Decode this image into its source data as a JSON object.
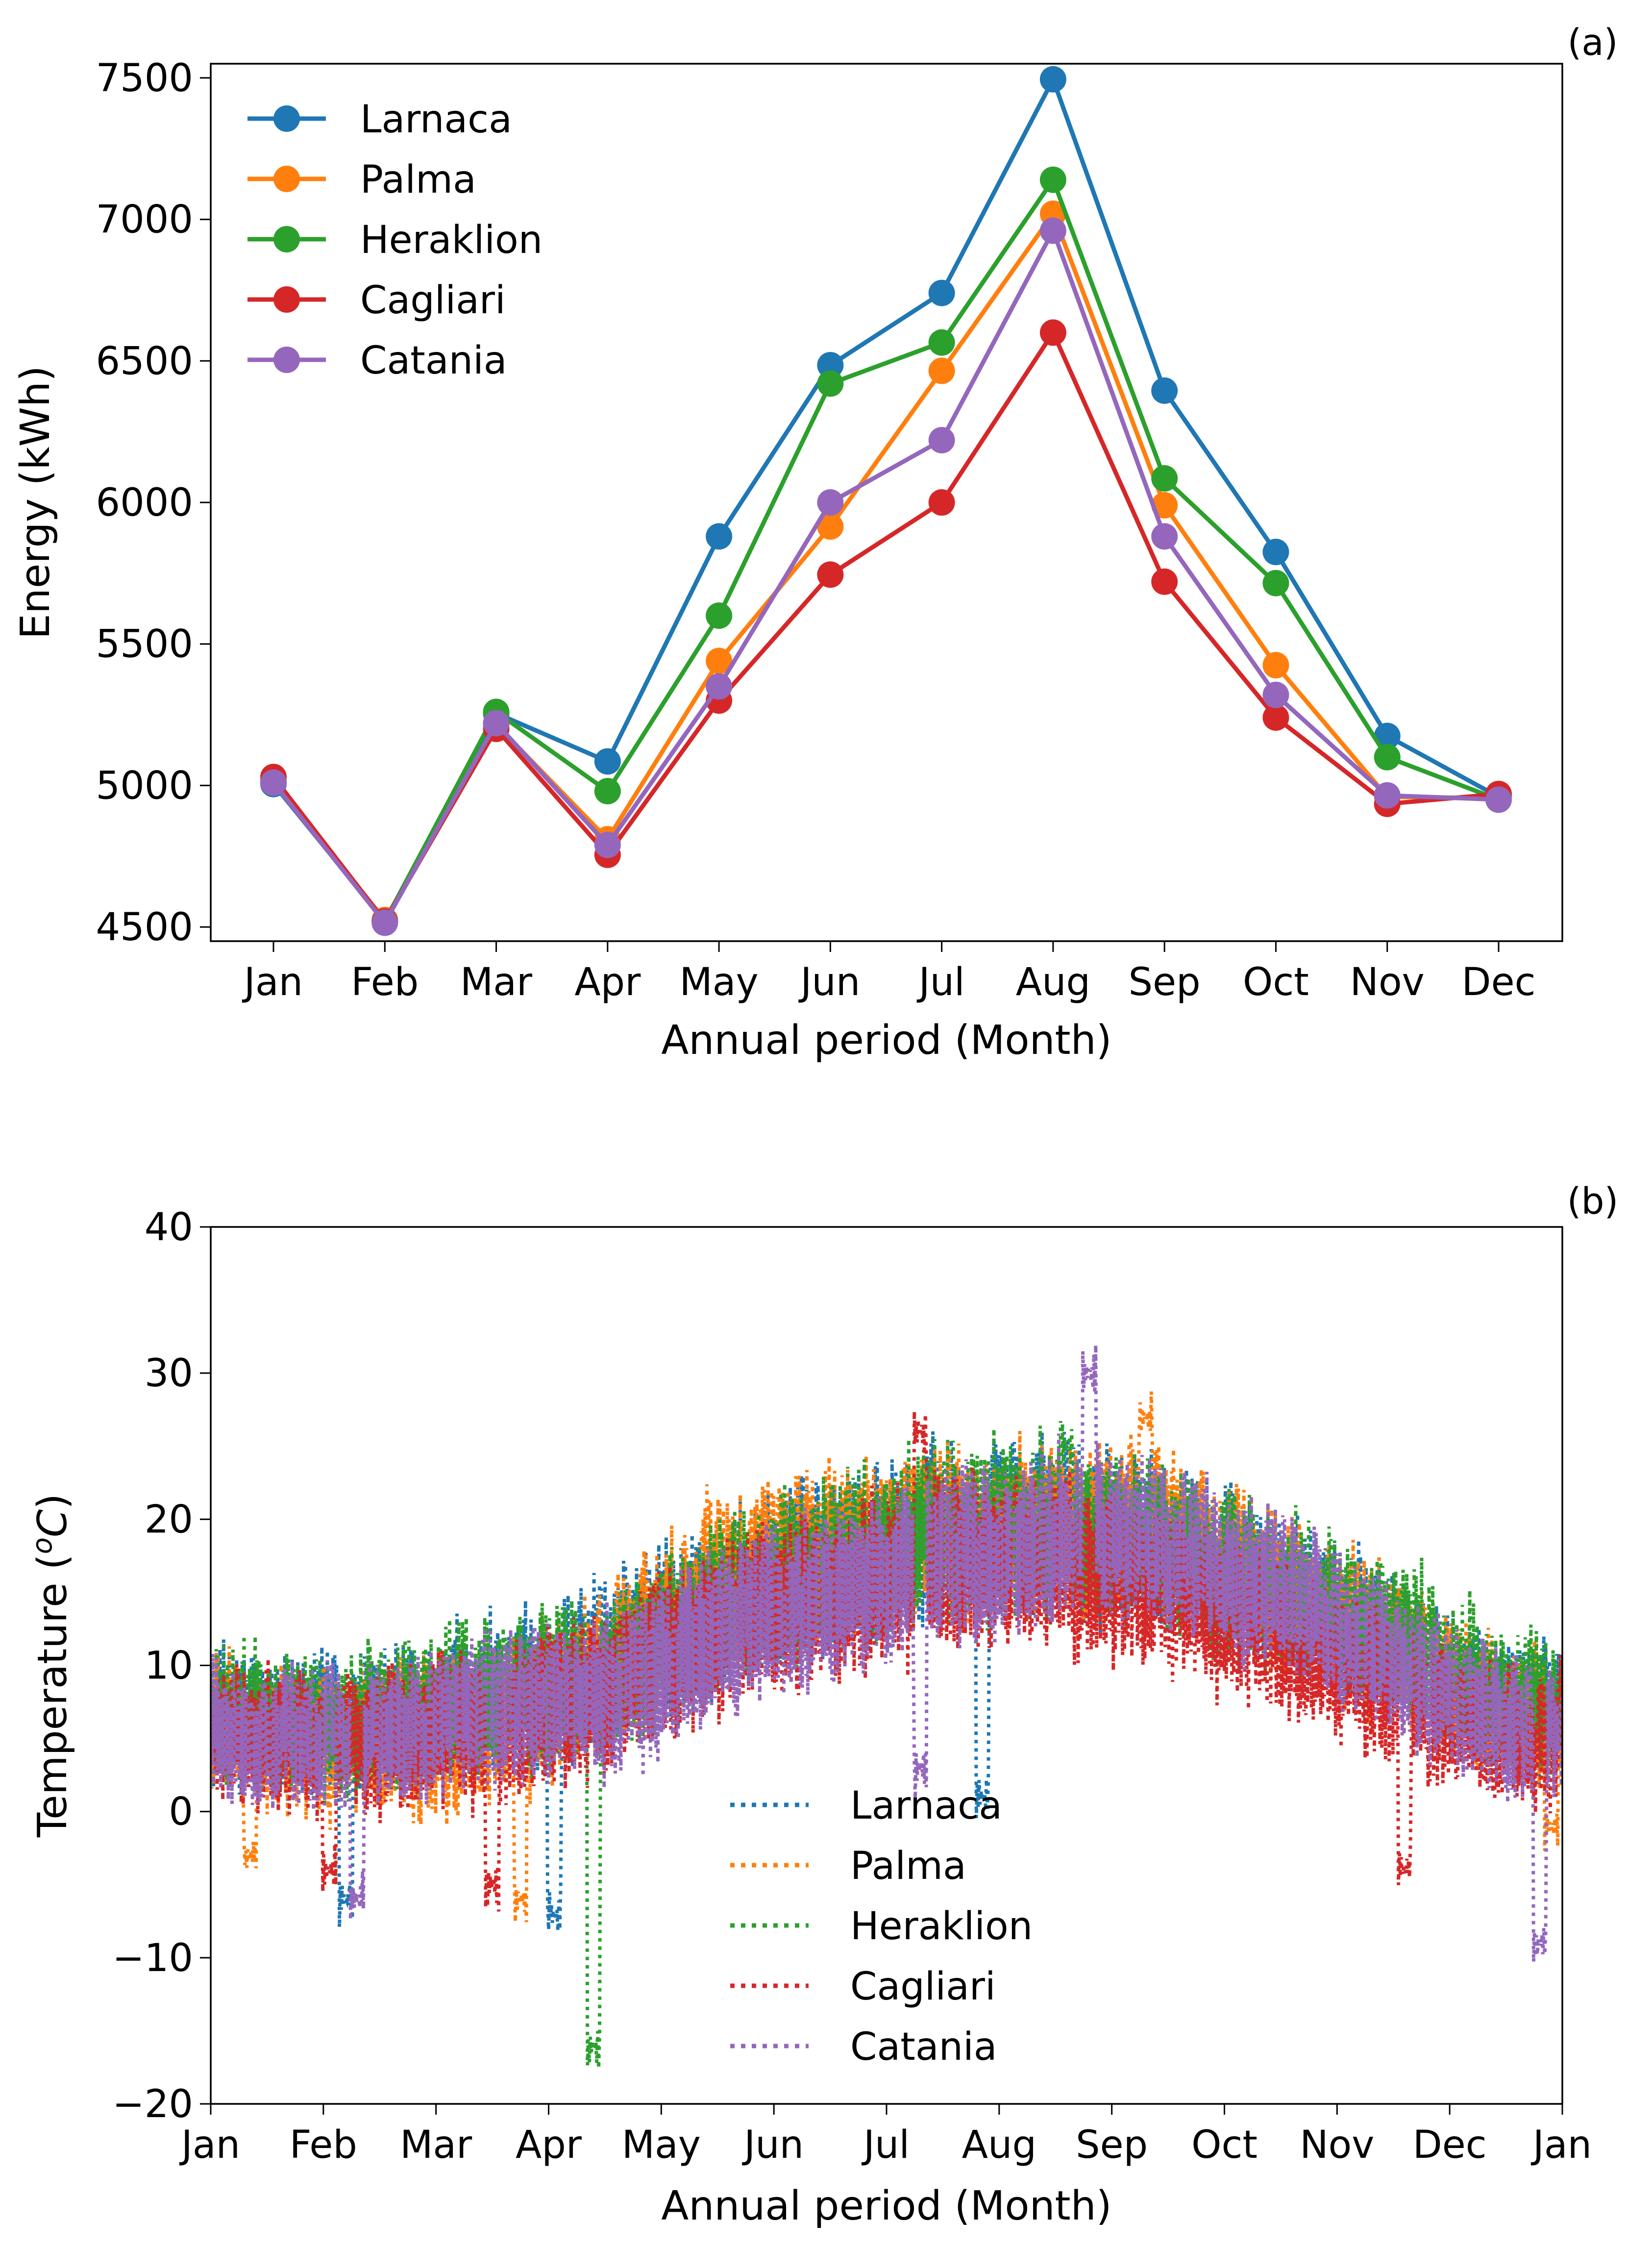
{
  "chart_data": [
    {
      "panel": "(a)",
      "type": "line",
      "xlabel": "Annual period (Month)",
      "ylabel": "Energy (kWh)",
      "ylim": [
        4450,
        7550
      ],
      "yticks": [
        4500,
        5000,
        5500,
        6000,
        6500,
        7000,
        7500
      ],
      "categories": [
        "Jan",
        "Feb",
        "Mar",
        "Apr",
        "May",
        "Jun",
        "Jul",
        "Aug",
        "Sep",
        "Oct",
        "Nov",
        "Dec"
      ],
      "legend_location": "upper-left",
      "markers": "filled circle",
      "series": [
        {
          "name": "Larnaca",
          "color": "#1f77b4",
          "values": [
            5005,
            4520,
            5255,
            5085,
            5880,
            6485,
            6740,
            7495,
            6395,
            5825,
            5175,
            4960
          ]
        },
        {
          "name": "Palma",
          "color": "#ff7f0e",
          "values": [
            5010,
            4525,
            5215,
            4810,
            5440,
            5915,
            6465,
            7020,
            5990,
            5425,
            4960,
            4955
          ]
        },
        {
          "name": "Heraklion",
          "color": "#2ca02c",
          "values": [
            5015,
            4520,
            5260,
            4980,
            5600,
            6420,
            6565,
            7140,
            6085,
            5715,
            5100,
            4950
          ]
        },
        {
          "name": "Cagliari",
          "color": "#d62728",
          "values": [
            5030,
            4520,
            5200,
            4755,
            5300,
            5745,
            6000,
            6600,
            5720,
            5240,
            4935,
            4970
          ]
        },
        {
          "name": "Catania",
          "color": "#9467bd",
          "values": [
            5010,
            4515,
            5220,
            4790,
            5350,
            6000,
            6220,
            6960,
            5880,
            5320,
            4965,
            4950
          ]
        }
      ]
    },
    {
      "panel": "(b)",
      "type": "line",
      "line_style": "dotted",
      "xlabel": "Annual period (Month)",
      "ylabel": "Temperature (oC)",
      "ylabel_parts": {
        "pre": "Temperature (",
        "sup": "o",
        "unit": "C",
        "post": ")"
      },
      "ylim": [
        -20,
        40
      ],
      "yticks": [
        -20,
        -10,
        0,
        10,
        20,
        30,
        40
      ],
      "xticks": [
        "Jan",
        "Feb",
        "Mar",
        "Apr",
        "May",
        "Jun",
        "Jul",
        "Aug",
        "Sep",
        "Oct",
        "Nov",
        "Dec",
        "Jan"
      ],
      "legend_location": "lower-center",
      "resolution": "hourly over one year (approximated by monthly mean and spread)",
      "series": [
        {
          "name": "Larnaca",
          "color": "#1f77b4",
          "monthly_mean": [
            6,
            6,
            8,
            10,
            14,
            17,
            19,
            20,
            18,
            15,
            11,
            7
          ],
          "extremes": [
            {
              "month": 1.2,
              "value": -6
            },
            {
              "month": 3.05,
              "value": -7
            },
            {
              "month": 6.85,
              "value": 1
            }
          ]
        },
        {
          "name": "Palma",
          "color": "#ff7f0e",
          "monthly_mean": [
            5,
            5,
            6,
            9,
            16,
            18,
            19,
            19,
            19,
            15,
            11,
            7
          ],
          "extremes": [
            {
              "month": 0.35,
              "value": -3
            },
            {
              "month": 2.75,
              "value": -6
            },
            {
              "month": 8.3,
              "value": 27
            },
            {
              "month": 11.9,
              "value": -1
            }
          ]
        },
        {
          "name": "Heraklion",
          "color": "#2ca02c",
          "monthly_mean": [
            6,
            6,
            8,
            9,
            14,
            17,
            19,
            19,
            18,
            15,
            12,
            8
          ],
          "extremes": [
            {
              "month": 3.4,
              "value": -16
            },
            {
              "month": 7.6,
              "value": 25
            }
          ]
        },
        {
          "name": "Cagliari",
          "color": "#d62728",
          "monthly_mean": [
            5,
            5,
            6,
            8,
            13,
            15,
            17,
            17,
            15,
            12,
            8,
            5
          ],
          "extremes": [
            {
              "month": 1.05,
              "value": -4
            },
            {
              "month": 2.5,
              "value": -5
            },
            {
              "month": 6.3,
              "value": 26
            },
            {
              "month": 10.6,
              "value": -4
            }
          ]
        },
        {
          "name": "Catania",
          "color": "#9467bd",
          "monthly_mean": [
            5,
            5,
            7,
            8,
            12,
            15,
            17,
            19,
            18,
            15,
            10,
            6
          ],
          "extremes": [
            {
              "month": 1.3,
              "value": -6
            },
            {
              "month": 6.3,
              "value": 3
            },
            {
              "month": 7.8,
              "value": 30
            },
            {
              "month": 11.8,
              "value": -9
            }
          ]
        }
      ]
    }
  ]
}
